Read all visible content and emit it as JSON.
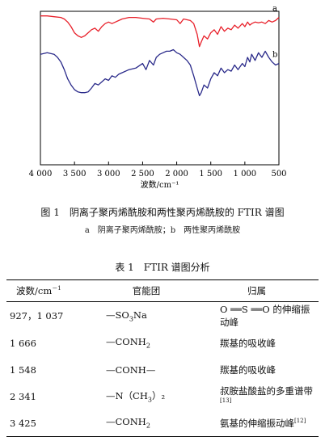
{
  "chart_data": {
    "type": "line",
    "xlabel": "波数/cm⁻¹",
    "x_ticks": [
      "4 000",
      "3 500",
      "3 000",
      "2 500",
      "2 000",
      "1 500",
      "1 000",
      "500"
    ],
    "xlim": [
      4000,
      500
    ],
    "grid": false,
    "series": [
      {
        "name": "a",
        "color": "#e8202a",
        "x": [
          4000,
          3900,
          3800,
          3700,
          3650,
          3600,
          3550,
          3500,
          3450,
          3400,
          3350,
          3300,
          3250,
          3200,
          3150,
          3100,
          3050,
          3000,
          2950,
          2900,
          2850,
          2800,
          2700,
          2600,
          2500,
          2400,
          2341,
          2300,
          2200,
          2100,
          2000,
          1950,
          1900,
          1800,
          1750,
          1700,
          1666,
          1640,
          1600,
          1548,
          1500,
          1450,
          1400,
          1350,
          1300,
          1250,
          1200,
          1150,
          1100,
          1037,
          1000,
          960,
          927,
          900,
          850,
          800,
          750,
          700,
          650,
          600,
          550,
          500
        ],
        "y": [
          0.97,
          0.97,
          0.965,
          0.96,
          0.95,
          0.93,
          0.9,
          0.86,
          0.84,
          0.83,
          0.84,
          0.86,
          0.88,
          0.89,
          0.87,
          0.9,
          0.92,
          0.93,
          0.92,
          0.93,
          0.94,
          0.95,
          0.96,
          0.96,
          0.955,
          0.95,
          0.93,
          0.95,
          0.955,
          0.95,
          0.945,
          0.92,
          0.95,
          0.94,
          0.92,
          0.85,
          0.77,
          0.8,
          0.84,
          0.82,
          0.86,
          0.88,
          0.85,
          0.9,
          0.87,
          0.89,
          0.88,
          0.91,
          0.89,
          0.92,
          0.9,
          0.93,
          0.91,
          0.92,
          0.93,
          0.925,
          0.93,
          0.92,
          0.94,
          0.93,
          0.94,
          0.96
        ]
      },
      {
        "name": "b",
        "color": "#2a2a8a",
        "x": [
          4000,
          3900,
          3800,
          3750,
          3700,
          3650,
          3600,
          3550,
          3500,
          3450,
          3400,
          3350,
          3300,
          3250,
          3200,
          3150,
          3100,
          3050,
          3000,
          2950,
          2900,
          2850,
          2800,
          2700,
          2600,
          2500,
          2450,
          2400,
          2341,
          2300,
          2250,
          2200,
          2150,
          2100,
          2050,
          2000,
          1950,
          1900,
          1850,
          1800,
          1750,
          1700,
          1666,
          1640,
          1600,
          1548,
          1500,
          1450,
          1400,
          1350,
          1300,
          1250,
          1200,
          1150,
          1100,
          1037,
          1000,
          960,
          927,
          900,
          850,
          800,
          750,
          700,
          650,
          600,
          550,
          500
        ],
        "y": [
          0.72,
          0.73,
          0.72,
          0.7,
          0.67,
          0.62,
          0.56,
          0.52,
          0.49,
          0.475,
          0.47,
          0.47,
          0.475,
          0.5,
          0.53,
          0.52,
          0.54,
          0.56,
          0.55,
          0.58,
          0.57,
          0.59,
          0.6,
          0.62,
          0.63,
          0.66,
          0.62,
          0.68,
          0.65,
          0.7,
          0.72,
          0.73,
          0.74,
          0.74,
          0.75,
          0.73,
          0.72,
          0.7,
          0.68,
          0.65,
          0.58,
          0.5,
          0.45,
          0.47,
          0.52,
          0.5,
          0.56,
          0.6,
          0.58,
          0.63,
          0.6,
          0.62,
          0.61,
          0.65,
          0.62,
          0.66,
          0.64,
          0.7,
          0.67,
          0.72,
          0.68,
          0.73,
          0.7,
          0.74,
          0.7,
          0.67,
          0.65,
          0.66
        ]
      }
    ]
  },
  "figure": {
    "caption": "图 1　阴离子聚丙烯酰胺和两性聚丙烯酰胺的 FTIR 谱图",
    "subcaption": "a　阴离子聚丙烯酰胺；b　两性聚丙烯酰胺"
  },
  "table": {
    "title": "表 1　FTIR 谱图分析",
    "headers": {
      "wavenumber": "波数/cm",
      "wavenumber_sup": "－1",
      "group": "官能团",
      "assignment": "归属"
    },
    "rows": [
      {
        "wavenumber": "927，1 037",
        "group": "—SO",
        "group_sub": "3",
        "group_tail": "Na",
        "assignment": "O ══S ══O 的伸缩振动峰",
        "ref": ""
      },
      {
        "wavenumber": "1 666",
        "group": "—CONH",
        "group_sub": "2",
        "group_tail": "",
        "assignment": "羰基的吸收峰",
        "ref": ""
      },
      {
        "wavenumber": "1 548",
        "group": "—CONH—",
        "group_sub": "",
        "group_tail": "",
        "assignment": "羰基的吸收峰",
        "ref": ""
      },
      {
        "wavenumber": "2 341",
        "group": "—N（CH",
        "group_sub": "3",
        "group_tail": "）₂",
        "assignment": "叔胺盐酸盐的多重谱带",
        "ref": "[13]"
      },
      {
        "wavenumber": "3 425",
        "group": "—CONH",
        "group_sub": "2",
        "group_tail": "",
        "assignment": "氨基的伸缩振动峰",
        "ref": "[12]"
      }
    ]
  }
}
